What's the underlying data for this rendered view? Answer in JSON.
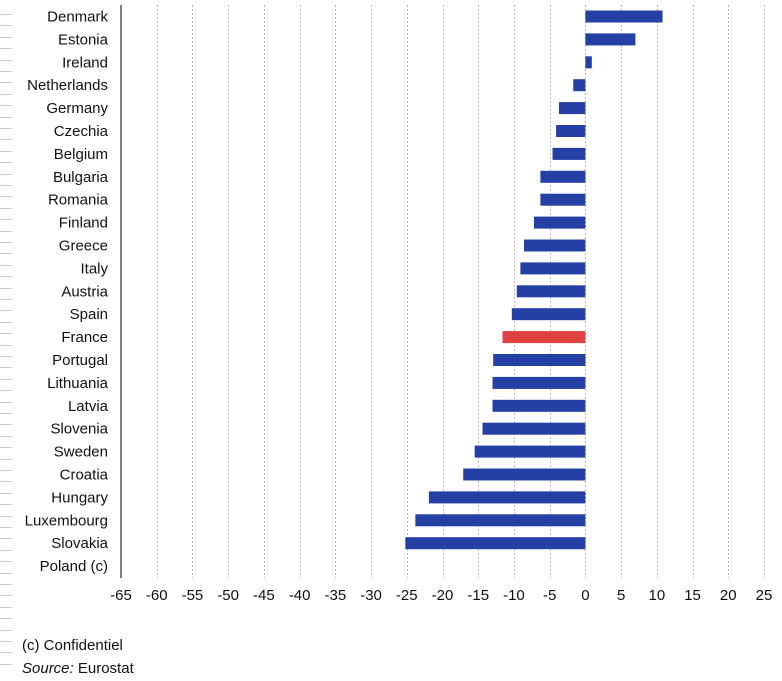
{
  "chart_data": {
    "type": "bar",
    "orientation": "horizontal",
    "categories": [
      "Denmark",
      "Estonia",
      "Ireland",
      "Netherlands",
      "Germany",
      "Czechia",
      "Belgium",
      "Bulgaria",
      "Romania",
      "Finland",
      "Greece",
      "Italy",
      "Austria",
      "Spain",
      "France",
      "Portugal",
      "Lithuania",
      "Latvia",
      "Slovenia",
      "Sweden",
      "Croatia",
      "Hungary",
      "Luxembourg",
      "Slovakia",
      "Poland (c)"
    ],
    "values": [
      10.8,
      7.0,
      0.9,
      -1.7,
      -3.7,
      -4.1,
      -4.6,
      -6.3,
      -6.3,
      -7.2,
      -8.6,
      -9.1,
      -9.6,
      -10.3,
      -11.6,
      -12.9,
      -13.0,
      -13.0,
      -14.4,
      -15.5,
      -17.1,
      -21.9,
      -23.8,
      -25.2,
      null
    ],
    "highlight_category": "France",
    "xlim": [
      -65,
      25
    ],
    "xticks": [
      -65,
      -60,
      -55,
      -50,
      -45,
      -40,
      -35,
      -30,
      -25,
      -20,
      -15,
      -10,
      -5,
      0,
      5,
      10,
      15,
      20,
      25
    ],
    "grid": "vertical dashed",
    "legend": "none",
    "colors": {
      "bar": "#2440a4",
      "highlight": "#e04040",
      "grid": "#b8b8b8",
      "axis": "#000000"
    }
  },
  "footnotes": {
    "confidential": "(c) Confidentiel",
    "source_label": "Source:",
    "source_text": " Eurostat"
  }
}
